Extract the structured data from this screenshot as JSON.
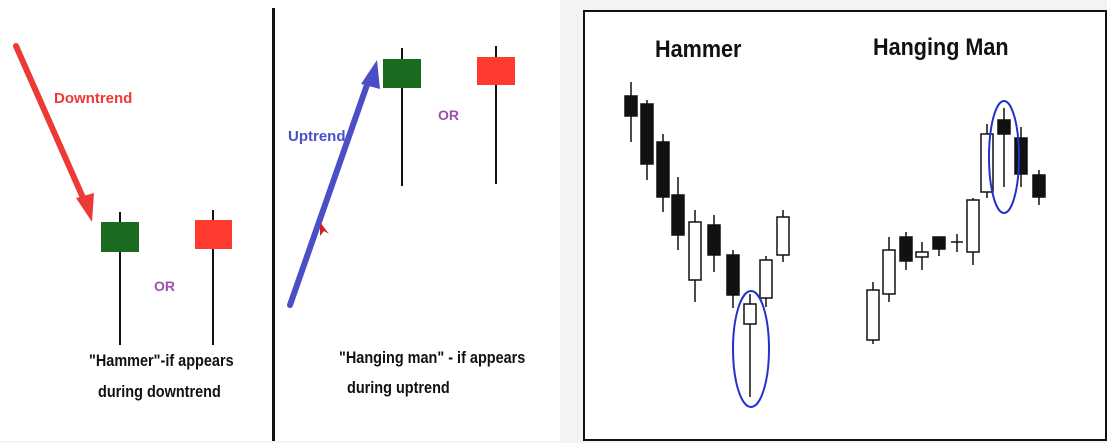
{
  "left": {
    "downtrend_label": "Downtrend",
    "uptrend_label": "Uptrend",
    "or_label_1": "OR",
    "or_label_2": "OR",
    "hammer_caption_line1": "\"Hammer\"-if appears",
    "hammer_caption_line2": "during downtrend",
    "hanging_caption_line1": "\"Hanging man\" - if appears",
    "hanging_caption_line2": "during uptrend"
  },
  "right": {
    "hammer_title": "Hammer",
    "hanging_man_title": "Hanging Man"
  },
  "colors": {
    "bullish": "#1a6b1f",
    "bearish": "#ff3b30",
    "downtrend_arrow": "#ee3a35",
    "uptrend_arrow": "#4a4fc8",
    "highlight_circle": "#2233cc",
    "or_text": "#9b4fb0"
  }
}
